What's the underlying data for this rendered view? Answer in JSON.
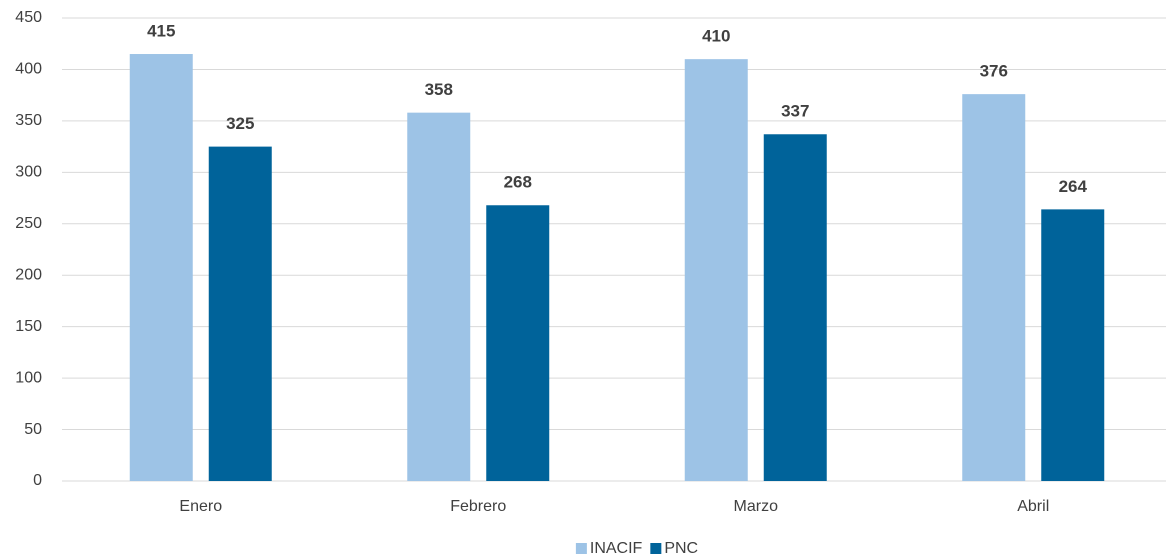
{
  "chart_data": {
    "type": "bar",
    "categories": [
      "Enero",
      "Febrero",
      "Marzo",
      "Abril"
    ],
    "series": [
      {
        "name": "INACIF",
        "color": "#9dc3e6",
        "values": [
          415,
          358,
          410,
          376
        ]
      },
      {
        "name": "PNC",
        "color": "#00639a",
        "values": [
          325,
          268,
          337,
          264
        ]
      }
    ],
    "ylim": [
      0,
      450
    ],
    "yticks": [
      0,
      50,
      100,
      150,
      200,
      250,
      300,
      350,
      400,
      450
    ],
    "grid": true,
    "legend": "bottom"
  }
}
